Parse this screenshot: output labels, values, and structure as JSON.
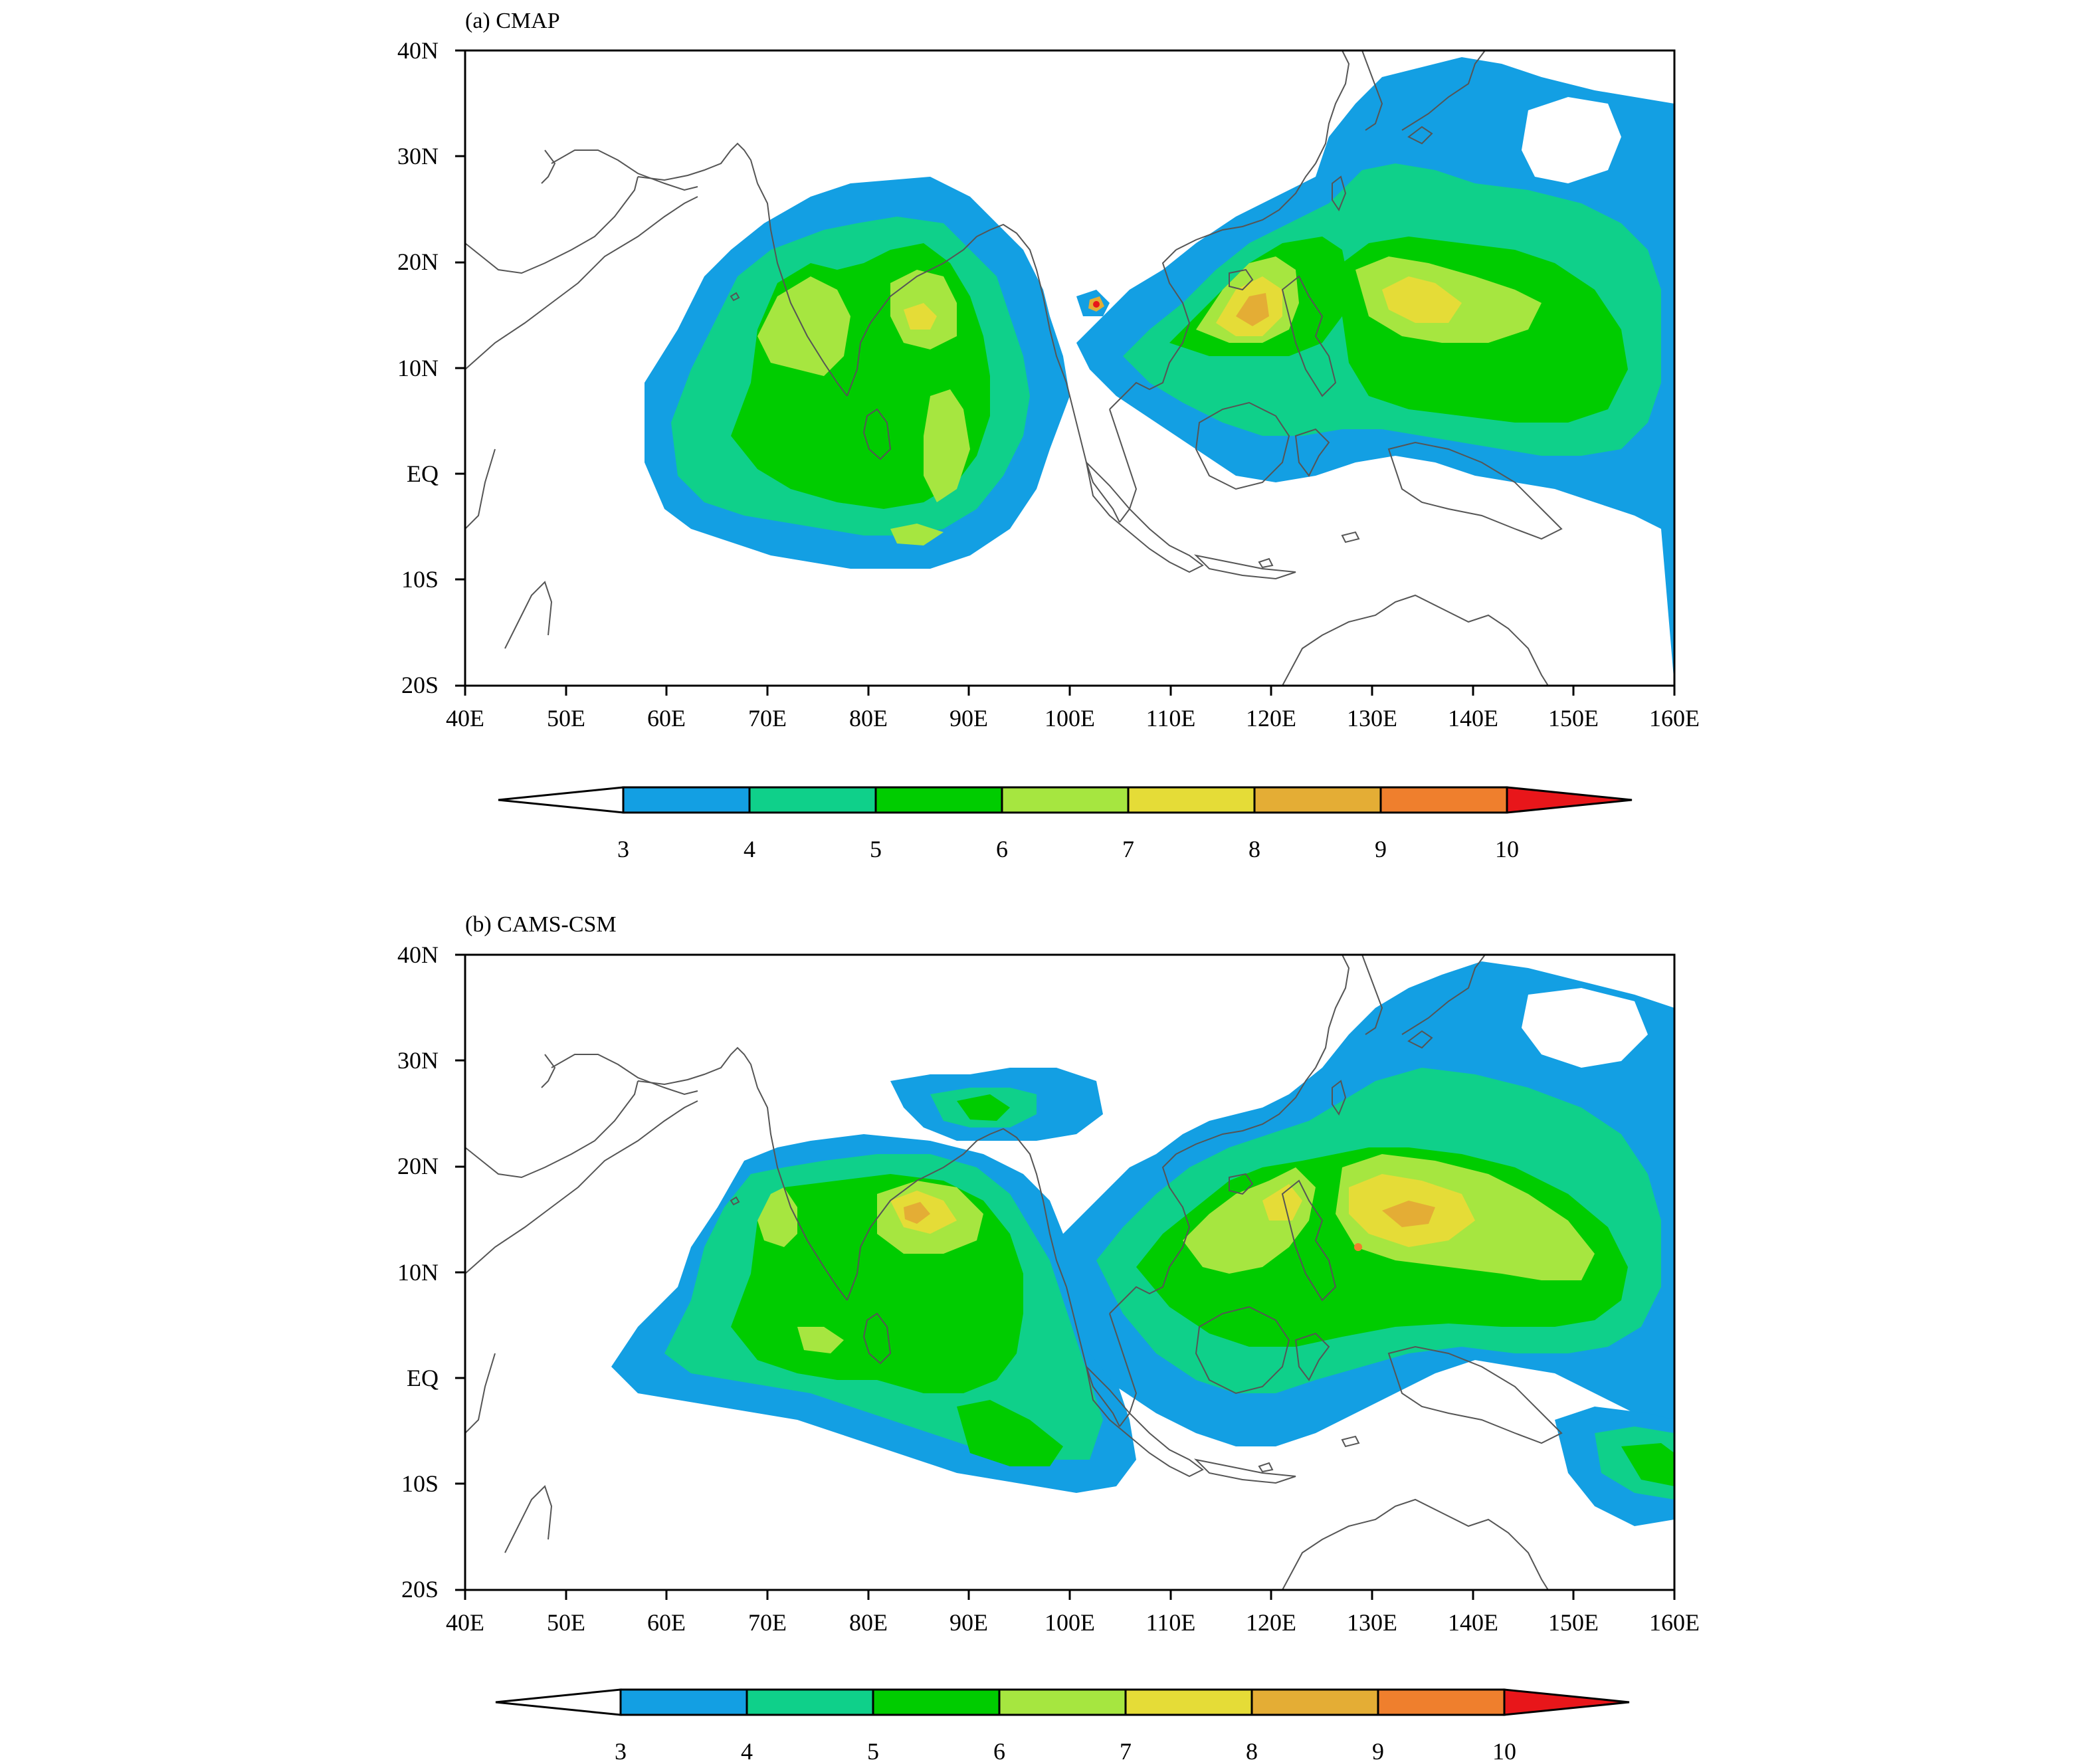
{
  "panels": [
    {
      "id": "a",
      "title": "(a) CMAP",
      "lat_labels": [
        "40N",
        "30N",
        "20N",
        "10N",
        "EQ",
        "10S",
        "20S"
      ],
      "lon_labels": [
        "40E",
        "50E",
        "60E",
        "70E",
        "80E",
        "90E",
        "100E",
        "110E",
        "120E",
        "130E",
        "140E",
        "150E",
        "160E"
      ],
      "colorbar": {
        "ticks": [
          "3",
          "4",
          "5",
          "6",
          "7",
          "8",
          "9",
          "10"
        ]
      }
    },
    {
      "id": "b",
      "title": "(b) CAMS-CSM",
      "lat_labels": [
        "40N",
        "30N",
        "20N",
        "10N",
        "EQ",
        "10S",
        "20S"
      ],
      "lon_labels": [
        "40E",
        "50E",
        "60E",
        "70E",
        "80E",
        "90E",
        "100E",
        "110E",
        "120E",
        "130E",
        "140E",
        "150E",
        "160E"
      ],
      "colorbar": {
        "ticks": [
          "3",
          "4",
          "5",
          "6",
          "7",
          "8",
          "9",
          "10"
        ]
      }
    }
  ],
  "palette": [
    "#ffffff",
    "#139fe3",
    "#0fd08a",
    "#00cc00",
    "#a6e640",
    "#e5dc37",
    "#e4ad35",
    "#ef7f2d",
    "#e8161a"
  ]
}
